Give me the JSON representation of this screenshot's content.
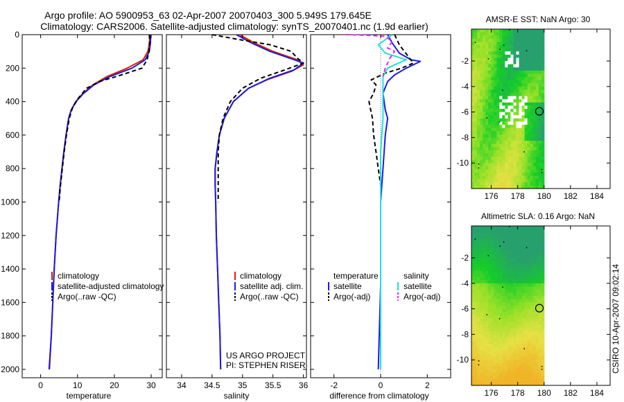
{
  "figure": {
    "title_line1": "Argo profile: AO 5900953_63 02-Apr-2007 20070403_300 5.949S 179.645E",
    "title_line2": "Climatology: CARS2006. Satellite-adjusted climatology: synTS_20070401.nc (1.9d earlier)",
    "side_label": "CSIRO 10-Apr-2007 09:02:14",
    "project_line1": "US ARGO PROJECT",
    "project_line2": "PI: STEPHEN RISER"
  },
  "colors": {
    "climatology": "#dd2200",
    "satellite": "#1a1ae6",
    "argo": "#000000",
    "satellite_salinity": "#22dddd",
    "argo_salinity": "#ee22ee",
    "land_white": "#ffffff"
  },
  "legends": {
    "temperature": [
      "climatology",
      "satellite-adjusted climatology",
      "Argo(..raw -QC)"
    ],
    "salinity": [
      "climatology",
      "satellite adj. clim.",
      "Argo(..raw -QC)"
    ],
    "difference": {
      "col1_title": "temperature",
      "col1_items": [
        "satellite",
        "Argo(-adj)"
      ],
      "col2_title": "salinity",
      "col2_items": [
        "satellite",
        "Argo(-adj)"
      ]
    }
  },
  "chart_data": [
    {
      "type": "line",
      "panel": "temperature",
      "xlabel": "temperature",
      "ylabel": "",
      "xlim": [
        -5,
        33
      ],
      "ylim": [
        2050,
        0
      ],
      "xticks": [
        0,
        10,
        20,
        30
      ],
      "yticks": [
        0,
        200,
        400,
        600,
        800,
        1000,
        1200,
        1400,
        1600,
        1800,
        2000
      ],
      "series": [
        {
          "name": "climatology",
          "style": "solid",
          "color_key": "climatology",
          "points": [
            [
              29.6,
              0
            ],
            [
              29.5,
              50
            ],
            [
              29.1,
              100
            ],
            [
              27.8,
              150
            ],
            [
              23.5,
              200
            ],
            [
              18,
              250
            ],
            [
              14.2,
              300
            ],
            [
              11.5,
              350
            ],
            [
              9.5,
              400
            ],
            [
              8.3,
              450
            ],
            [
              7.6,
              500
            ],
            [
              6.9,
              600
            ],
            [
              6.3,
              700
            ],
            [
              5.8,
              800
            ],
            [
              5.3,
              900
            ],
            [
              4.9,
              1000
            ],
            [
              4.2,
              1200
            ],
            [
              3.7,
              1400
            ],
            [
              3.3,
              1600
            ],
            [
              2.9,
              1800
            ],
            [
              2.4,
              2000
            ]
          ]
        },
        {
          "name": "satellite-adjusted climatology",
          "style": "solid",
          "color_key": "satellite",
          "points": [
            [
              29.9,
              0
            ],
            [
              29.8,
              50
            ],
            [
              29.5,
              100
            ],
            [
              28.4,
              150
            ],
            [
              24.8,
              200
            ],
            [
              18.8,
              250
            ],
            [
              14.5,
              300
            ],
            [
              11.7,
              350
            ],
            [
              9.6,
              400
            ],
            [
              8.3,
              450
            ],
            [
              7.6,
              500
            ],
            [
              6.9,
              600
            ],
            [
              6.3,
              700
            ],
            [
              5.8,
              800
            ],
            [
              5.3,
              900
            ],
            [
              4.9,
              1000
            ],
            [
              4.2,
              1200
            ],
            [
              3.7,
              1400
            ],
            [
              3.3,
              1600
            ],
            [
              2.9,
              1800
            ],
            [
              2.3,
              2000
            ]
          ]
        },
        {
          "name": "Argo(..raw -QC)",
          "style": "dashed",
          "color_key": "argo",
          "points": [
            [
              29.5,
              0
            ],
            [
              29.6,
              50
            ],
            [
              29.4,
              100
            ],
            [
              28.9,
              150
            ],
            [
              27.5,
              200
            ],
            [
              22,
              240
            ],
            [
              16,
              280
            ],
            [
              12.5,
              320
            ],
            [
              10.2,
              380
            ],
            [
              8.6,
              440
            ],
            [
              7.8,
              500
            ],
            [
              7.0,
              600
            ],
            [
              6.4,
              700
            ],
            [
              5.9,
              800
            ],
            [
              5.4,
              900
            ],
            [
              5.0,
              1000
            ]
          ]
        }
      ]
    },
    {
      "type": "line",
      "panel": "salinity",
      "xlabel": "salinity",
      "xlim": [
        33.75,
        36.05
      ],
      "ylim": [
        2050,
        0
      ],
      "xticks": [
        34,
        34.5,
        35,
        35.5,
        36
      ],
      "yticks": [
        0,
        200,
        400,
        600,
        800,
        1000,
        1200,
        1400,
        1600,
        1800,
        2000
      ],
      "series": [
        {
          "name": "climatology",
          "style": "solid",
          "color_key": "climatology",
          "points": [
            [
              34.95,
              0
            ],
            [
              35.2,
              50
            ],
            [
              35.5,
              100
            ],
            [
              35.9,
              150
            ],
            [
              36.0,
              180
            ],
            [
              35.8,
              220
            ],
            [
              35.4,
              270
            ],
            [
              35.1,
              320
            ],
            [
              34.85,
              400
            ],
            [
              34.7,
              500
            ],
            [
              34.62,
              600
            ],
            [
              34.58,
              700
            ],
            [
              34.55,
              800
            ],
            [
              34.55,
              900
            ],
            [
              34.56,
              1000
            ],
            [
              34.57,
              1200
            ],
            [
              34.59,
              1400
            ],
            [
              34.61,
              1600
            ],
            [
              34.63,
              1800
            ],
            [
              34.64,
              2000
            ]
          ]
        },
        {
          "name": "satellite adj. clim.",
          "style": "solid",
          "color_key": "satellite",
          "points": [
            [
              34.9,
              0
            ],
            [
              35.15,
              50
            ],
            [
              35.45,
              100
            ],
            [
              35.85,
              150
            ],
            [
              36.0,
              170
            ],
            [
              35.85,
              210
            ],
            [
              35.45,
              260
            ],
            [
              35.1,
              320
            ],
            [
              34.85,
              400
            ],
            [
              34.7,
              500
            ],
            [
              34.62,
              600
            ],
            [
              34.58,
              700
            ],
            [
              34.55,
              800
            ],
            [
              34.55,
              900
            ],
            [
              34.56,
              1000
            ],
            [
              34.57,
              1200
            ],
            [
              34.59,
              1400
            ],
            [
              34.61,
              1600
            ],
            [
              34.63,
              1800
            ],
            [
              34.64,
              2000
            ]
          ]
        },
        {
          "name": "Argo(..raw -QC)",
          "style": "dashed",
          "color_key": "argo",
          "points": [
            [
              34.5,
              0
            ],
            [
              34.95,
              30
            ],
            [
              35.45,
              60
            ],
            [
              35.8,
              100
            ],
            [
              35.9,
              140
            ],
            [
              36.0,
              170
            ],
            [
              35.7,
              210
            ],
            [
              35.3,
              260
            ],
            [
              35.0,
              320
            ],
            [
              34.8,
              400
            ],
            [
              34.68,
              500
            ],
            [
              34.62,
              600
            ],
            [
              34.6,
              700
            ],
            [
              34.6,
              800
            ],
            [
              34.6,
              900
            ],
            [
              34.6,
              1000
            ]
          ]
        }
      ]
    },
    {
      "type": "line",
      "panel": "difference",
      "xlabel": "difference from climatology",
      "xlim": [
        -3,
        3
      ],
      "ylim": [
        2050,
        0
      ],
      "xticks": [
        -2,
        0,
        2
      ],
      "yticks": [
        0,
        200,
        400,
        600,
        800,
        1000,
        1200,
        1400,
        1600,
        1800,
        2000
      ],
      "series": [
        {
          "name": "temperature satellite",
          "style": "solid",
          "color_key": "satellite",
          "points": [
            [
              0.3,
              0
            ],
            [
              0.5,
              50
            ],
            [
              0.8,
              110
            ],
            [
              1.3,
              150
            ],
            [
              1.7,
              160
            ],
            [
              1.1,
              200
            ],
            [
              0.6,
              240
            ],
            [
              0.3,
              280
            ],
            [
              0.1,
              350
            ],
            [
              0.2,
              450
            ],
            [
              0.3,
              500
            ],
            [
              0.2,
              600
            ],
            [
              0.1,
              800
            ],
            [
              0.0,
              1000
            ],
            [
              0.0,
              1500
            ],
            [
              -0.1,
              2000
            ]
          ]
        },
        {
          "name": "temperature Argo(-adj)",
          "style": "dashed",
          "color_key": "argo",
          "points": [
            [
              0.6,
              0
            ],
            [
              0.8,
              60
            ],
            [
              1.4,
              170
            ],
            [
              0.9,
              200
            ],
            [
              0.2,
              230
            ],
            [
              -0.4,
              270
            ],
            [
              -0.2,
              300
            ],
            [
              -0.3,
              350
            ],
            [
              -0.5,
              400
            ],
            [
              -0.35,
              500
            ],
            [
              -0.3,
              600
            ],
            [
              -0.2,
              700
            ],
            [
              -0.1,
              800
            ],
            [
              0.0,
              900
            ],
            [
              0.0,
              1000
            ]
          ]
        },
        {
          "name": "salinity satellite",
          "style": "solid",
          "color_key": "satellite_salinity",
          "points": [
            [
              0.5,
              0
            ],
            [
              -0.1,
              60
            ],
            [
              0.2,
              110
            ],
            [
              1.1,
              150
            ],
            [
              0.6,
              180
            ],
            [
              0.3,
              200
            ],
            [
              0.1,
              250
            ],
            [
              0.1,
              350
            ],
            [
              0.1,
              500
            ],
            [
              0.0,
              700
            ],
            [
              0.0,
              1000
            ],
            [
              0.0,
              1500
            ],
            [
              0.0,
              2000
            ]
          ]
        },
        {
          "name": "salinity Argo(-adj)",
          "style": "dashed",
          "color_key": "argo_salinity",
          "points": [
            [
              -1.5,
              0
            ],
            [
              -0.4,
              5
            ],
            [
              0.2,
              10
            ],
            [
              0.5,
              40
            ],
            [
              0.3,
              80
            ],
            [
              0.6,
              100
            ],
            [
              0.4,
              140
            ],
            [
              0.2,
              200
            ],
            [
              0.1,
              250
            ]
          ]
        }
      ]
    },
    {
      "type": "heatmap",
      "panel": "sst-map",
      "title": "AMSR-E SST: NaN Argo: 30",
      "xlim": [
        174.5,
        185
      ],
      "ylim": [
        -12,
        0.5
      ],
      "data_xlim": [
        174.5,
        180
      ],
      "xticks": [
        176,
        178,
        180,
        182,
        184
      ],
      "yticks": [
        -2,
        -4,
        -6,
        -8,
        -10
      ],
      "marker": {
        "lon": 179.645,
        "lat": -5.949
      }
    },
    {
      "type": "heatmap",
      "panel": "sla-map",
      "title": "Altimetric SLA: 0.16 Argo: NaN",
      "xlim": [
        174.5,
        185
      ],
      "ylim": [
        -12,
        0.5
      ],
      "data_xlim": [
        174.5,
        180
      ],
      "xticks": [
        176,
        178,
        180,
        182,
        184
      ],
      "yticks": [
        -2,
        -4,
        -6,
        -8,
        -10
      ],
      "marker": {
        "lon": 179.645,
        "lat": -5.949
      }
    }
  ]
}
